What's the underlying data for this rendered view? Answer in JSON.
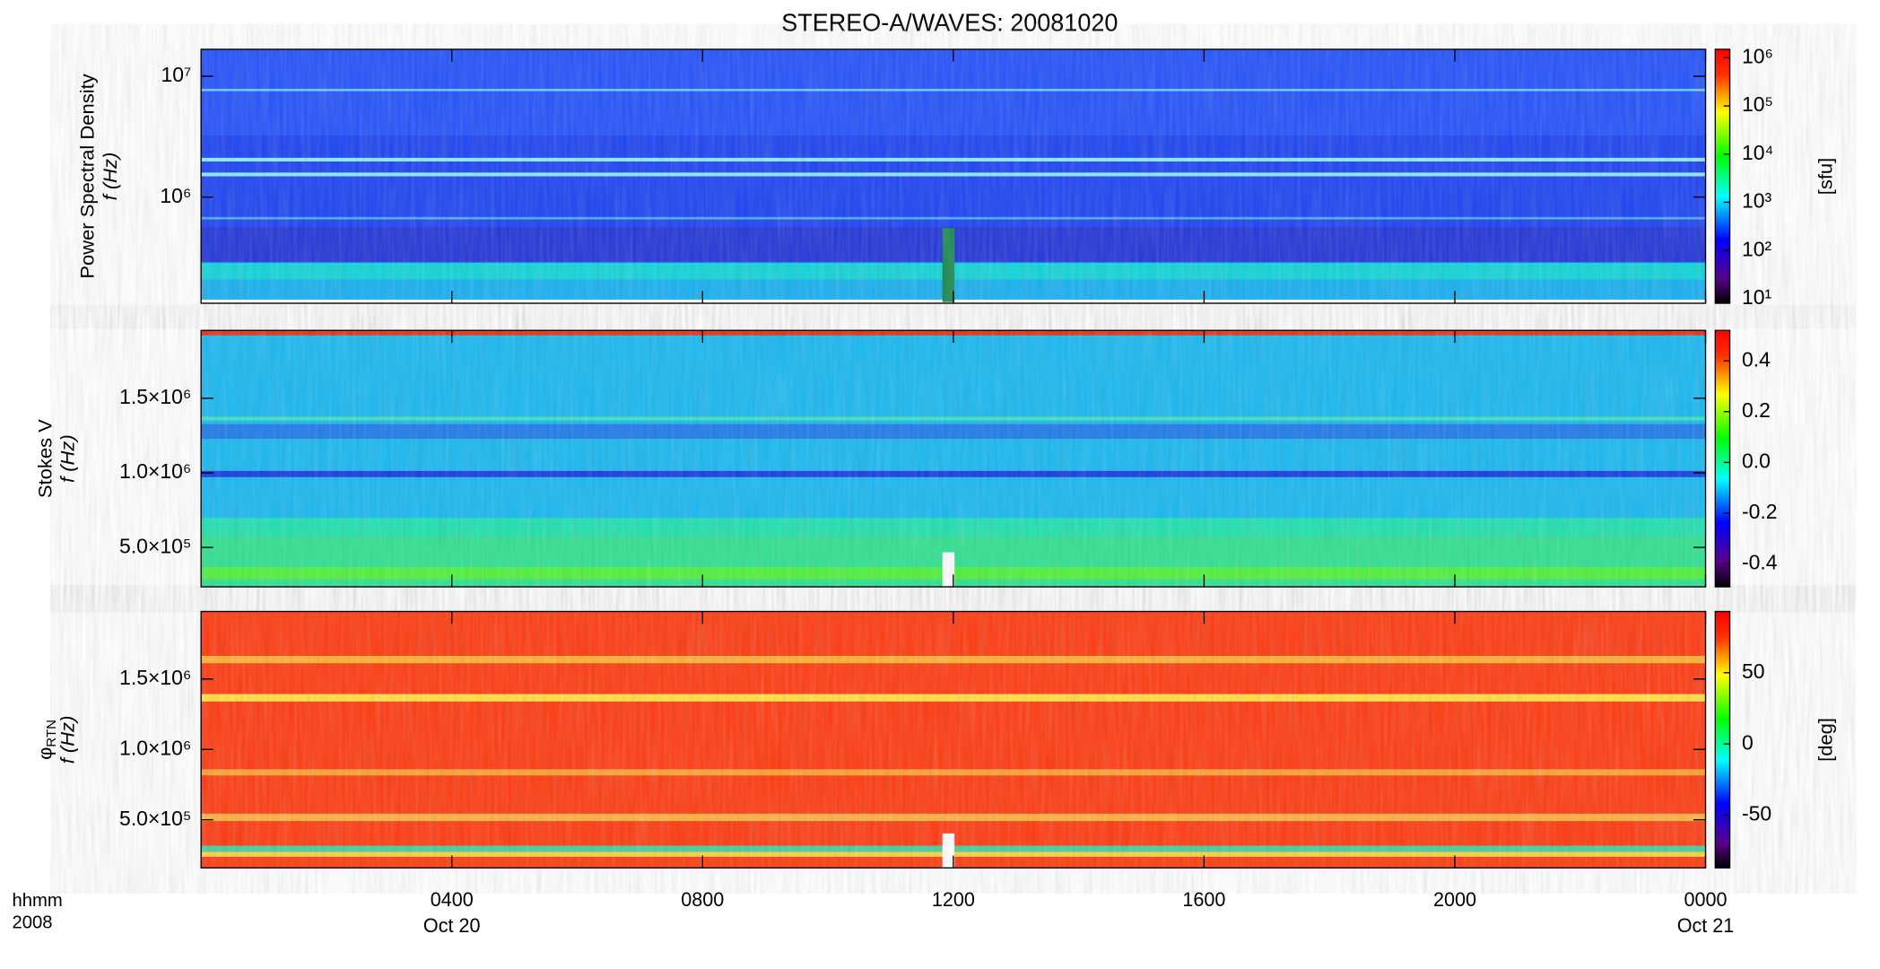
{
  "title": "STEREO-A/WAVES: 20081020",
  "xlim": [
    0,
    24
  ],
  "xticks": [
    {
      "value": 4,
      "label": "0400"
    },
    {
      "value": 8,
      "label": "0800"
    },
    {
      "value": 12,
      "label": "1200"
    },
    {
      "value": 16,
      "label": "1600"
    },
    {
      "value": 20,
      "label": "2000"
    },
    {
      "value": 24,
      "label": "0000"
    }
  ],
  "xdates": [
    {
      "value": 4,
      "label": "Oct 20"
    },
    {
      "value": 24,
      "label": "Oct 21"
    }
  ],
  "xlabels": [
    "hhmm",
    "2008"
  ],
  "chart_data": [
    {
      "type": "spectrogram",
      "ylabel": "Power Spectral Density",
      "ylabel2": "f (Hz)",
      "ylog": true,
      "ylim": [
        132000,
        16700000
      ],
      "yticks": [
        {
          "value": 1000000,
          "label": "10⁶"
        },
        {
          "value": 10000000,
          "label": "10⁷"
        }
      ],
      "clabel": "[sfu]",
      "clog": true,
      "clim": [
        8,
        1500000
      ],
      "cticks": [
        {
          "value": 10,
          "label": "10¹"
        },
        {
          "value": 100,
          "label": "10²"
        },
        {
          "value": 1000,
          "label": "10³"
        },
        {
          "value": 10000,
          "label": "10⁴"
        },
        {
          "value": 100000,
          "label": "10⁵"
        },
        {
          "value": 1000000,
          "label": "10⁶"
        }
      ]
    },
    {
      "type": "spectrogram",
      "ylabel": "Stokes V",
      "ylabel2": "f (Hz)",
      "ylog": false,
      "ylim": [
        236000,
        1955000
      ],
      "yticks": [
        {
          "value": 500000,
          "label": "5.0×10⁵"
        },
        {
          "value": 1000000,
          "label": "1.0×10⁶"
        },
        {
          "value": 1500000,
          "label": "1.5×10⁶"
        }
      ],
      "clog": false,
      "clim": [
        -0.49,
        0.52
      ],
      "cticks": [
        -0.4,
        -0.2,
        {
          "value": 0,
          "label": "0.0"
        },
        0.2,
        0.4
      ]
    },
    {
      "type": "spectrogram",
      "ylabel": "φ",
      "ylabel_sub": "RTN",
      "ylabel2": "f (Hz)",
      "ylog": false,
      "ylim": [
        158000,
        1980000
      ],
      "yticks": [
        {
          "value": 500000,
          "label": "5.0×10⁵"
        },
        {
          "value": 1000000,
          "label": "1.0×10⁶"
        },
        {
          "value": 1500000,
          "label": "1.5×10⁶"
        }
      ],
      "clabel": "[deg]",
      "clog": false,
      "clim": [
        -87,
        93
      ],
      "cticks": [
        -50,
        0,
        50
      ]
    }
  ]
}
